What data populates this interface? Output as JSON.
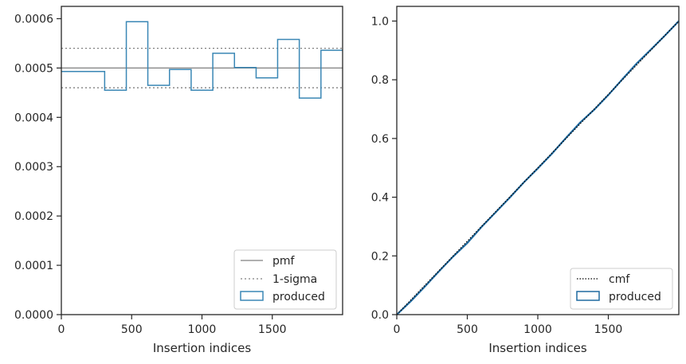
{
  "chart_data": [
    {
      "type": "histogram",
      "xlabel": "Insertion indices",
      "ylabel": "",
      "xlim": [
        0,
        2000
      ],
      "ylim": [
        0,
        0.000625
      ],
      "xticks": [
        0,
        500,
        1000,
        1500
      ],
      "xtick_labels": [
        "0",
        "500",
        "1000",
        "1500"
      ],
      "yticks": [
        0,
        0.0001,
        0.0002,
        0.0003,
        0.0004,
        0.0005,
        0.0006
      ],
      "ytick_labels": [
        "0.0000",
        "0.0001",
        "0.0002",
        "0.0003",
        "0.0004",
        "0.0005",
        "0.0006"
      ],
      "grid": false,
      "legend_position": "lower-right",
      "legend": [
        "pmf",
        "1-sigma",
        "produced"
      ],
      "pmf": 0.0005,
      "sigma_band": [
        0.00046,
        0.00054
      ],
      "bin_edges": [
        0,
        308,
        462,
        615,
        769,
        923,
        1077,
        1231,
        1385,
        1538,
        1692,
        1846,
        2000
      ],
      "bin_values": [
        0.000493,
        0.000455,
        0.000594,
        0.000465,
        0.000497,
        0.000455,
        0.00053,
        0.000501,
        0.00048,
        0.000558,
        0.000439,
        0.000536
      ],
      "colors": {
        "produced": "#3a87b5",
        "pmf": "#808080",
        "sigma": "#808080"
      }
    },
    {
      "type": "line",
      "xlabel": "Insertion indices",
      "ylabel": "",
      "xlim": [
        0,
        2000
      ],
      "ylim": [
        0,
        1.05
      ],
      "xticks": [
        0,
        500,
        1000,
        1500
      ],
      "xtick_labels": [
        "0",
        "500",
        "1000",
        "1500"
      ],
      "yticks": [
        0,
        0.2,
        0.4,
        0.6,
        0.8,
        1.0
      ],
      "ytick_labels": [
        "0.0",
        "0.2",
        "0.4",
        "0.6",
        "0.8",
        "1.0"
      ],
      "grid": false,
      "legend_position": "lower-right",
      "legend": [
        "cmf",
        "produced"
      ],
      "cmf_x": [
        0,
        2000
      ],
      "cmf_y": [
        0,
        1
      ],
      "produced_x": [
        0,
        100,
        200,
        300,
        400,
        500,
        600,
        700,
        800,
        900,
        1000,
        1100,
        1200,
        1300,
        1400,
        1500,
        1600,
        1700,
        1800,
        1900,
        2000
      ],
      "produced_y": [
        0,
        0.046,
        0.096,
        0.148,
        0.198,
        0.244,
        0.298,
        0.348,
        0.398,
        0.45,
        0.498,
        0.548,
        0.602,
        0.654,
        0.698,
        0.748,
        0.802,
        0.855,
        0.902,
        0.95,
        1.0
      ],
      "colors": {
        "produced": "#1f6aa0",
        "cmf": "#000000"
      }
    }
  ]
}
